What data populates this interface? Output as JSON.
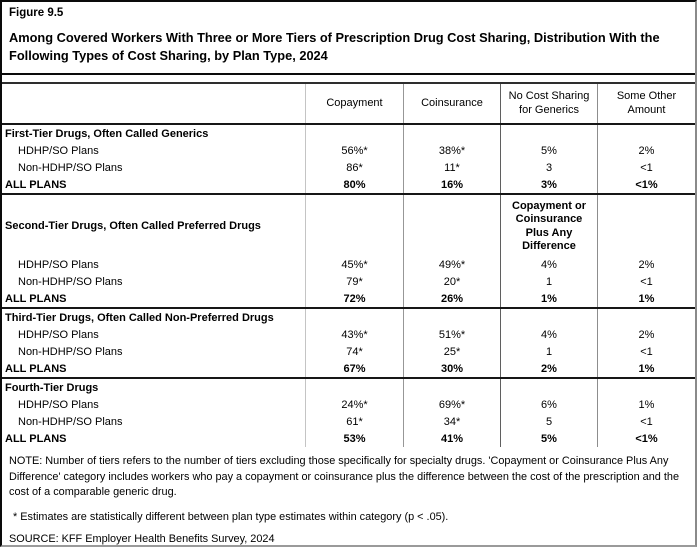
{
  "chart_data": {
    "type": "table",
    "figure_label": "Figure 9.5",
    "title": "Among Covered Workers With Three or More Tiers of Prescription Drug Cost Sharing, Distribution With the Following Types of Cost Sharing, by Plan Type, 2024",
    "column_headers": [
      "Copayment",
      "Coinsurance",
      "No Cost Sharing\nfor Generics",
      "Some Other\nAmount"
    ],
    "sections": [
      {
        "title": "First-Tier Drugs, Often Called Generics",
        "rows": [
          {
            "label": "HDHP/SO Plans",
            "values": [
              "56%*",
              "38%*",
              "5%",
              "2%"
            ]
          },
          {
            "label": "Non-HDHP/SO Plans",
            "values": [
              "86*",
              "11*",
              "3",
              "<1"
            ]
          },
          {
            "label": "ALL PLANS",
            "values": [
              "80%",
              "16%",
              "3%",
              "<1%"
            ]
          }
        ]
      },
      {
        "title": "Second-Tier Drugs, Often Called Preferred Drugs",
        "special_column_header": "Copayment or\nCoinsurance\nPlus Any\nDifference",
        "rows": [
          {
            "label": "HDHP/SO Plans",
            "values": [
              "45%*",
              "49%*",
              "4%",
              "2%"
            ]
          },
          {
            "label": "Non-HDHP/SO Plans",
            "values": [
              "79*",
              "20*",
              "1",
              "<1"
            ]
          },
          {
            "label": "ALL PLANS",
            "values": [
              "72%",
              "26%",
              "1%",
              "1%"
            ]
          }
        ]
      },
      {
        "title": "Third-Tier Drugs, Often Called Non-Preferred Drugs",
        "rows": [
          {
            "label": "HDHP/SO Plans",
            "values": [
              "43%*",
              "51%*",
              "4%",
              "2%"
            ]
          },
          {
            "label": "Non-HDHP/SO Plans",
            "values": [
              "74*",
              "25*",
              "1",
              "<1"
            ]
          },
          {
            "label": "ALL PLANS",
            "values": [
              "67%",
              "30%",
              "2%",
              "1%"
            ]
          }
        ]
      },
      {
        "title": "Fourth-Tier Drugs",
        "rows": [
          {
            "label": "HDHP/SO Plans",
            "values": [
              "24%*",
              "69%*",
              "6%",
              "1%"
            ]
          },
          {
            "label": "Non-HDHP/SO Plans",
            "values": [
              "61*",
              "34*",
              "5",
              "<1"
            ]
          },
          {
            "label": "ALL PLANS",
            "values": [
              "53%",
              "41%",
              "5%",
              "<1%"
            ]
          }
        ]
      }
    ],
    "notes": {
      "note": "NOTE: Number of tiers refers to the number of tiers excluding those specifically for specialty drugs. 'Copayment or Coinsurance Plus Any Difference' category includes workers who pay a copayment or coinsurance plus the difference between the cost of the prescription and the cost of a comparable generic drug.",
      "asterisk": "* Estimates are statistically different between plan type estimates within category (p < .05).",
      "source": "SOURCE: KFF Employer Health Benefits Survey, 2024"
    },
    "colors": {
      "text": "#000000",
      "grid_vertical": "#979797",
      "grid_horizontal": "#161616",
      "background": "#ffffff"
    },
    "layout": {
      "grid": "on",
      "legend": "none"
    }
  }
}
